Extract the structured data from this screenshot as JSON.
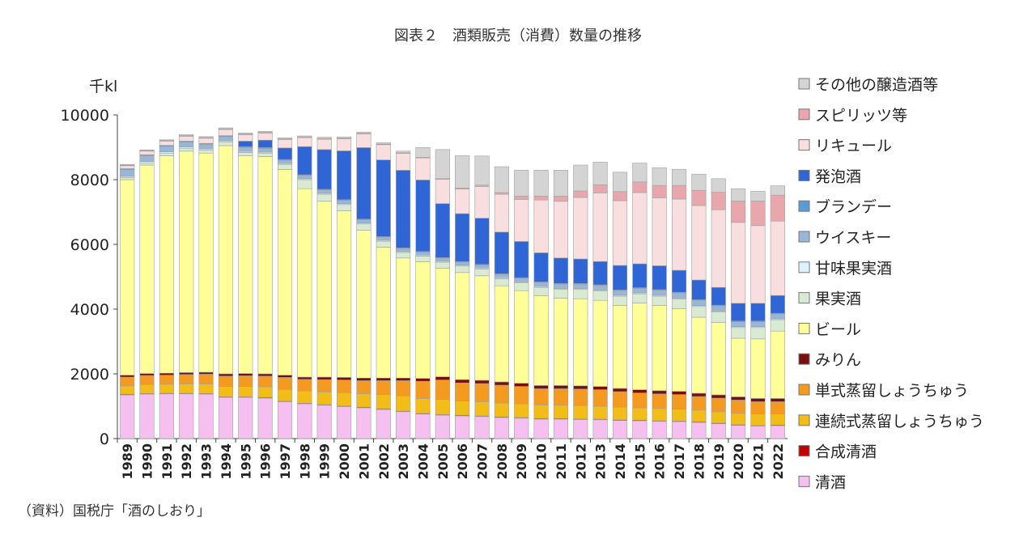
{
  "title": "図表２　酒類販売（消費）数量の推移",
  "source": "（資料）国税庁「酒のしおり」",
  "chart_data": {
    "type": "bar",
    "stacked": true,
    "title": "図表２　酒類販売（消費）数量の推移",
    "ylabel": "千kl",
    "ylim": [
      0,
      10000
    ],
    "yticks": [
      0,
      2000,
      4000,
      6000,
      8000,
      10000
    ],
    "legend_position": "right",
    "categories": [
      "1989",
      "1990",
      "1991",
      "1992",
      "1993",
      "1994",
      "1995",
      "1996",
      "1997",
      "1998",
      "1999",
      "2000",
      "2001",
      "2002",
      "2003",
      "2004",
      "2005",
      "2006",
      "2007",
      "2008",
      "2009",
      "2010",
      "2011",
      "2012",
      "2013",
      "2014",
      "2015",
      "2016",
      "2017",
      "2018",
      "2019",
      "2020",
      "2021",
      "2022"
    ],
    "series": [
      {
        "name": "清酒",
        "color": "#f5c0f0",
        "values": [
          1350,
          1370,
          1380,
          1380,
          1370,
          1270,
          1270,
          1250,
          1140,
          1070,
          1030,
          990,
          950,
          900,
          830,
          760,
          720,
          700,
          680,
          650,
          630,
          600,
          600,
          590,
          580,
          560,
          550,
          530,
          520,
          500,
          460,
          410,
          390,
          400
        ]
      },
      {
        "name": "合成清酒",
        "color": "#c00000",
        "values": [
          20,
          20,
          20,
          20,
          20,
          20,
          20,
          20,
          20,
          20,
          20,
          20,
          20,
          20,
          20,
          20,
          20,
          20,
          20,
          20,
          20,
          20,
          20,
          20,
          20,
          20,
          20,
          20,
          20,
          20,
          20,
          20,
          20,
          20
        ]
      },
      {
        "name": "連続式蒸留しょうちゅう",
        "color": "#f2bc19",
        "values": [
          260,
          280,
          280,
          290,
          300,
          320,
          320,
          330,
          360,
          380,
          390,
          410,
          420,
          440,
          470,
          460,
          470,
          440,
          440,
          430,
          420,
          420,
          410,
          410,
          400,
          390,
          380,
          380,
          370,
          360,
          350,
          350,
          350,
          340
        ]
      },
      {
        "name": "単式蒸留しょうちゅう",
        "color": "#f59a20",
        "values": [
          270,
          280,
          280,
          290,
          300,
          320,
          330,
          330,
          370,
          360,
          380,
          390,
          400,
          430,
          470,
          530,
          600,
          560,
          560,
          550,
          540,
          500,
          510,
          510,
          510,
          480,
          460,
          450,
          450,
          420,
          420,
          410,
          380,
          380
        ]
      },
      {
        "name": "みりん",
        "color": "#7a0d0d",
        "values": [
          60,
          60,
          60,
          60,
          60,
          70,
          70,
          70,
          70,
          70,
          80,
          80,
          80,
          80,
          80,
          90,
          100,
          100,
          100,
          100,
          100,
          100,
          100,
          100,
          100,
          100,
          100,
          100,
          100,
          100,
          100,
          100,
          100,
          100
        ]
      },
      {
        "name": "ビール",
        "color": "#ffff99",
        "values": [
          6040,
          6440,
          6720,
          6840,
          6770,
          7050,
          6730,
          6710,
          6350,
          5820,
          5430,
          5150,
          4570,
          4040,
          3710,
          3600,
          3350,
          3310,
          3230,
          2970,
          2860,
          2770,
          2700,
          2690,
          2660,
          2560,
          2680,
          2630,
          2550,
          2350,
          2240,
          1810,
          1840,
          2080
        ]
      },
      {
        "name": "果実酒",
        "color": "#d9ead3",
        "values": [
          60,
          70,
          80,
          90,
          90,
          110,
          100,
          110,
          160,
          280,
          220,
          190,
          190,
          190,
          170,
          180,
          190,
          200,
          210,
          220,
          240,
          260,
          270,
          290,
          290,
          290,
          280,
          290,
          300,
          330,
          320,
          330,
          350,
          350
        ]
      },
      {
        "name": "甘味果実酒",
        "color": "#ddf3fb",
        "values": [
          40,
          40,
          40,
          40,
          40,
          40,
          30,
          30,
          30,
          30,
          30,
          30,
          30,
          30,
          30,
          30,
          30,
          30,
          30,
          30,
          30,
          30,
          30,
          30,
          30,
          30,
          30,
          30,
          30,
          30,
          30,
          30,
          30,
          30
        ]
      },
      {
        "name": "ウイスキー",
        "color": "#98b6d6",
        "values": [
          210,
          180,
          170,
          150,
          140,
          130,
          120,
          110,
          100,
          100,
          100,
          100,
          100,
          90,
          90,
          90,
          90,
          90,
          90,
          100,
          110,
          120,
          130,
          130,
          140,
          140,
          140,
          150,
          160,
          160,
          160,
          150,
          150,
          150
        ]
      },
      {
        "name": "ブランデー",
        "color": "#5b9bd5",
        "values": [
          30,
          30,
          30,
          30,
          30,
          30,
          30,
          30,
          20,
          20,
          20,
          20,
          20,
          20,
          20,
          20,
          20,
          20,
          20,
          20,
          20,
          20,
          20,
          20,
          20,
          20,
          20,
          20,
          20,
          20,
          20,
          20,
          20,
          20
        ]
      },
      {
        "name": "発泡酒",
        "color": "#3065d6",
        "values": [
          0,
          0,
          0,
          0,
          0,
          0,
          170,
          230,
          360,
          870,
          1230,
          1510,
          2210,
          2370,
          2400,
          2210,
          1670,
          1480,
          1430,
          1290,
          1120,
          900,
          790,
          760,
          720,
          760,
          740,
          740,
          680,
          610,
          550,
          550,
          550,
          550
        ]
      },
      {
        "name": "リキュール",
        "color": "#f8dede",
        "values": [
          90,
          110,
          130,
          150,
          160,
          190,
          200,
          220,
          260,
          280,
          320,
          370,
          420,
          470,
          520,
          680,
          750,
          760,
          980,
          1170,
          1300,
          1630,
          1750,
          1900,
          2120,
          2000,
          2200,
          2100,
          2200,
          2300,
          2400,
          2500,
          2400,
          2300
        ]
      },
      {
        "name": "スピリッツ等",
        "color": "#e8a7ad",
        "values": [
          20,
          20,
          20,
          20,
          20,
          20,
          20,
          20,
          20,
          20,
          20,
          20,
          20,
          20,
          20,
          20,
          20,
          30,
          40,
          50,
          100,
          120,
          160,
          200,
          250,
          280,
          330,
          380,
          420,
          470,
          540,
          660,
          760,
          800
        ]
      },
      {
        "name": "その他の醸造酒等",
        "color": "#d4d4d4",
        "values": [
          20,
          20,
          20,
          30,
          30,
          30,
          30,
          30,
          30,
          30,
          40,
          40,
          40,
          40,
          50,
          300,
          900,
          1000,
          900,
          800,
          800,
          800,
          800,
          800,
          700,
          600,
          580,
          550,
          500,
          500,
          420,
          380,
          300,
          290
        ]
      }
    ]
  }
}
